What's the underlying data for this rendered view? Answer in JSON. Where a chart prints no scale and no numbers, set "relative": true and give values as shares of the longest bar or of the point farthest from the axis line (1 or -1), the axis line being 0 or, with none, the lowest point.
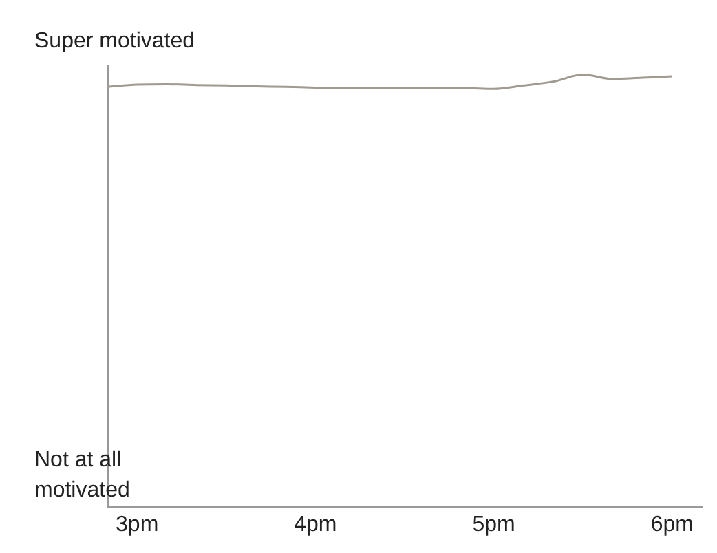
{
  "chart_data": {
    "type": "line",
    "relative": true,
    "categories": [
      null,
      "3pm",
      null,
      null,
      null,
      null,
      null,
      "4pm",
      null,
      null,
      null,
      null,
      null,
      "5pm",
      null,
      null,
      null,
      null,
      null,
      "6pm",
      null
    ],
    "series": [
      {
        "color": "#a09a90",
        "values": [
          0.972,
          0.977,
          0.978,
          0.976,
          0.975,
          0.973,
          0.972,
          0.97,
          0.969,
          0.969,
          0.969,
          0.969,
          0.969,
          0.967,
          0.975,
          0.984,
          1,
          0.99,
          0.993,
          0.996,
          null
        ]
      }
    ],
    "annotations": [
      "Super motivated",
      "Not at all motivated"
    ],
    "grid": false,
    "legend": false,
    "marker": "none",
    "line_style": "solid"
  }
}
